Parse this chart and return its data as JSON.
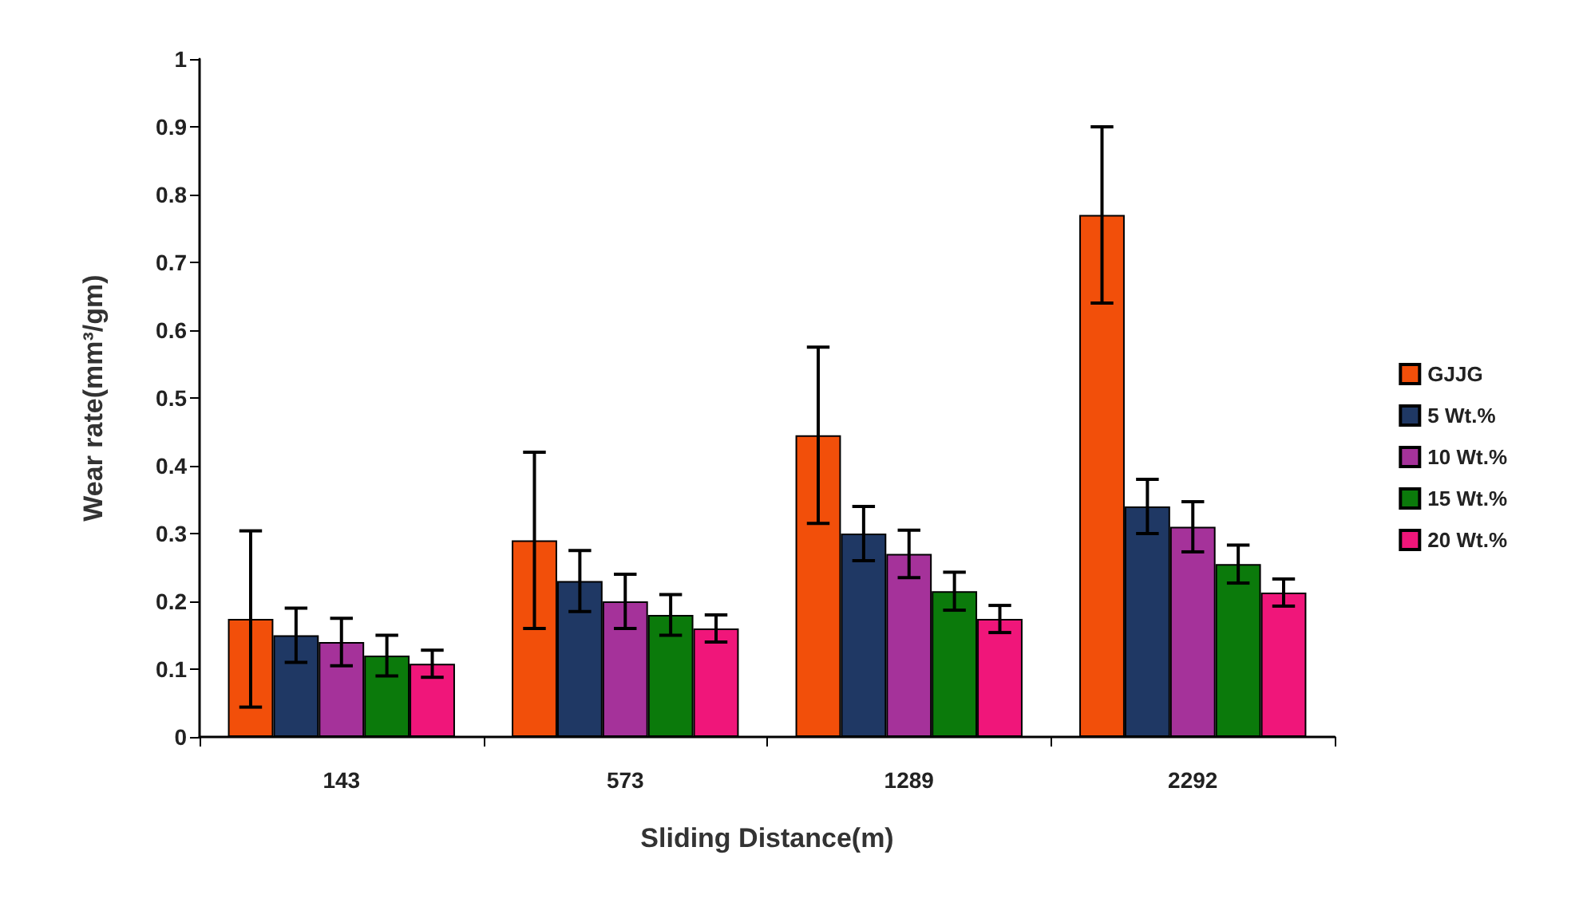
{
  "chart_data": {
    "type": "bar",
    "xlabel": "Sliding Distance(m)",
    "ylabel": "Wear rate(mm³/gm)",
    "categories": [
      "143",
      "573",
      "1289",
      "2292"
    ],
    "series": [
      {
        "name": "GJJG",
        "color": "#f24f0a",
        "values": [
          0.174,
          0.29,
          0.445,
          0.77
        ],
        "errors": [
          0.13,
          0.13,
          0.13,
          0.13
        ]
      },
      {
        "name": "5 Wt.%",
        "color": "#1f3864",
        "values": [
          0.15,
          0.23,
          0.3,
          0.34
        ],
        "errors": [
          0.04,
          0.045,
          0.04,
          0.04
        ]
      },
      {
        "name": "10 Wt.%",
        "color": "#a5329a",
        "values": [
          0.14,
          0.2,
          0.27,
          0.31
        ],
        "errors": [
          0.035,
          0.04,
          0.035,
          0.037
        ]
      },
      {
        "name": "15 Wt.%",
        "color": "#0b7a0b",
        "values": [
          0.12,
          0.18,
          0.215,
          0.255
        ],
        "errors": [
          0.03,
          0.03,
          0.028,
          0.028
        ]
      },
      {
        "name": "20 Wt.%",
        "color": "#f0167a",
        "values": [
          0.108,
          0.16,
          0.174,
          0.213
        ],
        "errors": [
          0.02,
          0.02,
          0.02,
          0.02
        ]
      }
    ],
    "ylim": [
      0,
      1
    ],
    "yticks": [
      0,
      0.1,
      0.2,
      0.3,
      0.4,
      0.5,
      0.6,
      0.7,
      0.8,
      0.9,
      1
    ],
    "grid": false,
    "legend": "right"
  }
}
